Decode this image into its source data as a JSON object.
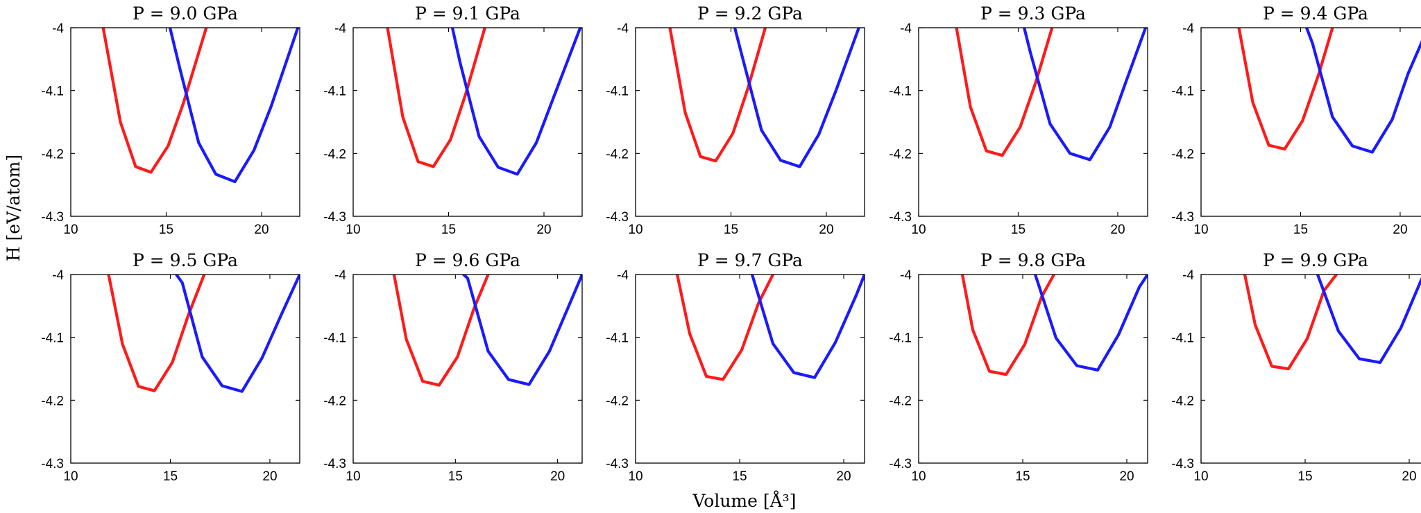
{
  "figure": {
    "ylabel": "H [eV/atom]",
    "xlabel": "Volume [Å³]"
  },
  "chart_data": [
    {
      "type": "line",
      "title": "P = 9.0 GPa",
      "xlim": [
        10,
        22
      ],
      "ylim": [
        -4.3,
        -4.0
      ],
      "xticks": [
        10,
        15,
        20
      ],
      "yticks": [
        -4,
        -4.1,
        -4.2,
        -4.3
      ],
      "series": [
        {
          "color": "#ff1a1a",
          "x": [
            11.7,
            12.6,
            13.4,
            14.2,
            15.1,
            15.9,
            17.1
          ],
          "y": [
            -4.0,
            -4.15,
            -4.221,
            -4.23,
            -4.188,
            -4.12,
            -4.0
          ]
        },
        {
          "color": "#1a1aff",
          "x": [
            15.2,
            15.7,
            16.7,
            17.6,
            18.6,
            19.6,
            20.5,
            21.9
          ],
          "y": [
            -4.0,
            -4.063,
            -4.183,
            -4.233,
            -4.245,
            -4.195,
            -4.125,
            -4.0
          ]
        }
      ]
    },
    {
      "type": "line",
      "title": "P = 9.1 GPa",
      "xlim": [
        10,
        22
      ],
      "ylim": [
        -4.3,
        -4.0
      ],
      "xticks": [
        10,
        15,
        20
      ],
      "yticks": [
        -4,
        -4.1,
        -4.2,
        -4.3
      ],
      "series": [
        {
          "color": "#ff1a1a",
          "x": [
            11.8,
            12.6,
            13.4,
            14.2,
            15.1,
            15.9,
            16.9
          ],
          "y": [
            -4.0,
            -4.142,
            -4.213,
            -4.221,
            -4.178,
            -4.105,
            -4.0
          ]
        },
        {
          "color": "#1a1aff",
          "x": [
            15.2,
            15.6,
            16.6,
            17.6,
            18.6,
            19.6,
            20.5,
            21.9
          ],
          "y": [
            -4.0,
            -4.055,
            -4.173,
            -4.222,
            -4.233,
            -4.183,
            -4.111,
            -4.0
          ]
        }
      ]
    },
    {
      "type": "line",
      "title": "P = 9.2 GPa",
      "xlim": [
        10,
        22
      ],
      "ylim": [
        -4.3,
        -4.0
      ],
      "xticks": [
        10,
        15,
        20
      ],
      "yticks": [
        -4,
        -4.1,
        -4.2,
        -4.3
      ],
      "series": [
        {
          "color": "#ff1a1a",
          "x": [
            11.8,
            12.6,
            13.4,
            14.2,
            15.1,
            15.9,
            16.8
          ],
          "y": [
            -4.0,
            -4.135,
            -4.205,
            -4.212,
            -4.168,
            -4.095,
            -4.0
          ]
        },
        {
          "color": "#1a1aff",
          "x": [
            15.2,
            15.6,
            16.6,
            17.6,
            18.6,
            19.6,
            20.5,
            21.7
          ],
          "y": [
            -4.0,
            -4.047,
            -4.163,
            -4.211,
            -4.221,
            -4.17,
            -4.1,
            -4.0
          ]
        }
      ]
    },
    {
      "type": "line",
      "title": "P = 9.3 GPa",
      "xlim": [
        10,
        21.5
      ],
      "ylim": [
        -4.3,
        -4.0
      ],
      "xticks": [
        10,
        15,
        20
      ],
      "yticks": [
        -4,
        -4.1,
        -4.2,
        -4.3
      ],
      "series": [
        {
          "color": "#ff1a1a",
          "x": [
            11.9,
            12.6,
            13.4,
            14.2,
            15.1,
            15.9,
            16.7
          ],
          "y": [
            -4.0,
            -4.126,
            -4.196,
            -4.203,
            -4.158,
            -4.085,
            -4.0
          ]
        },
        {
          "color": "#1a1aff",
          "x": [
            15.3,
            15.6,
            16.6,
            17.6,
            18.6,
            19.6,
            20.4,
            21.4
          ],
          "y": [
            -4.0,
            -4.038,
            -4.153,
            -4.2,
            -4.21,
            -4.158,
            -4.087,
            -4.0
          ]
        }
      ]
    },
    {
      "type": "line",
      "title": "P = 9.4 GPa",
      "xlim": [
        10,
        21.5
      ],
      "ylim": [
        -4.3,
        -4.0
      ],
      "xticks": [
        10,
        15,
        20
      ],
      "yticks": [
        -4,
        -4.1,
        -4.2,
        -4.3
      ],
      "series": [
        {
          "color": "#ff1a1a",
          "x": [
            11.9,
            12.6,
            13.4,
            14.2,
            15.1,
            15.9,
            16.6
          ],
          "y": [
            -4.0,
            -4.119,
            -4.187,
            -4.193,
            -4.148,
            -4.075,
            -4.0
          ]
        },
        {
          "color": "#1a1aff",
          "x": [
            15.3,
            15.6,
            16.6,
            17.6,
            18.6,
            19.6,
            20.4,
            21.4
          ],
          "y": [
            -4.0,
            -4.025,
            -4.142,
            -4.188,
            -4.198,
            -4.146,
            -4.073,
            -4.0
          ]
        }
      ]
    },
    {
      "type": "line",
      "title": "P = 9.5 GPa",
      "xlim": [
        10,
        21.5
      ],
      "ylim": [
        -4.3,
        -4.0
      ],
      "xticks": [
        10,
        15,
        20
      ],
      "yticks": [
        -4,
        -4.1,
        -4.2,
        -4.3
      ],
      "series": [
        {
          "color": "#ff1a1a",
          "x": [
            11.9,
            12.6,
            13.4,
            14.2,
            15.1,
            15.9,
            16.7
          ],
          "y": [
            -4.0,
            -4.111,
            -4.178,
            -4.185,
            -4.14,
            -4.065,
            -4.0
          ]
        },
        {
          "color": "#1a1aff",
          "x": [
            15.3,
            15.6,
            16.6,
            17.6,
            18.6,
            19.6,
            20.6,
            21.5
          ],
          "y": [
            -4.0,
            -4.013,
            -4.131,
            -4.177,
            -4.186,
            -4.133,
            -4.062,
            -4.0
          ]
        }
      ]
    },
    {
      "type": "line",
      "title": "P = 9.6 GPa",
      "xlim": [
        10,
        21.2
      ],
      "ylim": [
        -4.3,
        -4.0
      ],
      "xticks": [
        10,
        15,
        20
      ],
      "yticks": [
        -4,
        -4.1,
        -4.2,
        -4.3
      ],
      "series": [
        {
          "color": "#ff1a1a",
          "x": [
            12.0,
            12.6,
            13.4,
            14.2,
            15.1,
            15.9,
            16.6
          ],
          "y": [
            -4.0,
            -4.103,
            -4.17,
            -4.176,
            -4.131,
            -4.055,
            -4.0
          ]
        },
        {
          "color": "#1a1aff",
          "x": [
            15.4,
            15.6,
            16.6,
            17.6,
            18.6,
            19.6,
            20.6,
            21.2
          ],
          "y": [
            -4.0,
            -4.006,
            -4.122,
            -4.167,
            -4.175,
            -4.122,
            -4.046,
            -4.0
          ]
        }
      ]
    },
    {
      "type": "line",
      "title": "P = 9.7 GPa",
      "xlim": [
        10,
        21
      ],
      "ylim": [
        -4.3,
        -4.0
      ],
      "xticks": [
        10,
        15,
        20
      ],
      "yticks": [
        -4,
        -4.1,
        -4.2,
        -4.3
      ],
      "series": [
        {
          "color": "#ff1a1a",
          "x": [
            12.0,
            12.6,
            13.4,
            14.2,
            15.1,
            15.9,
            16.6
          ],
          "y": [
            -4.0,
            -4.094,
            -4.162,
            -4.167,
            -4.12,
            -4.046,
            -4.0
          ]
        },
        {
          "color": "#1a1aff",
          "x": [
            15.6,
            16.6,
            17.6,
            18.6,
            19.6,
            20.6,
            21.0
          ],
          "y": [
            -4.0,
            -4.11,
            -4.156,
            -4.164,
            -4.108,
            -4.033,
            -4.0
          ]
        }
      ]
    },
    {
      "type": "line",
      "title": "P = 9.8 GPa",
      "xlim": [
        10,
        21
      ],
      "ylim": [
        -4.3,
        -4.0
      ],
      "xticks": [
        10,
        15,
        20
      ],
      "yticks": [
        -4,
        -4.1,
        -4.2,
        -4.3
      ],
      "series": [
        {
          "color": "#ff1a1a",
          "x": [
            12.1,
            12.6,
            13.4,
            14.2,
            15.1,
            15.9,
            16.5
          ],
          "y": [
            -4.0,
            -4.088,
            -4.154,
            -4.159,
            -4.111,
            -4.036,
            -4.0
          ]
        },
        {
          "color": "#1a1aff",
          "x": [
            15.6,
            16.6,
            17.6,
            18.6,
            19.6,
            20.6,
            21.0
          ],
          "y": [
            -4.0,
            -4.101,
            -4.145,
            -4.152,
            -4.096,
            -4.02,
            -4.0
          ]
        }
      ]
    },
    {
      "type": "line",
      "title": "P = 9.9 GPa",
      "xlim": [
        10,
        21
      ],
      "ylim": [
        -4.3,
        -4.0
      ],
      "xticks": [
        10,
        15,
        20
      ],
      "yticks": [
        -4,
        -4.1,
        -4.2,
        -4.3
      ],
      "series": [
        {
          "color": "#ff1a1a",
          "x": [
            12.1,
            12.6,
            13.4,
            14.2,
            15.1,
            15.9,
            16.5
          ],
          "y": [
            -4.0,
            -4.08,
            -4.146,
            -4.15,
            -4.102,
            -4.026,
            -4.0
          ]
        },
        {
          "color": "#1a1aff",
          "x": [
            15.6,
            16.6,
            17.6,
            18.6,
            19.6,
            20.6,
            21.0
          ],
          "y": [
            -4.0,
            -4.09,
            -4.134,
            -4.14,
            -4.085,
            -4.007,
            -4.0
          ]
        }
      ]
    }
  ]
}
